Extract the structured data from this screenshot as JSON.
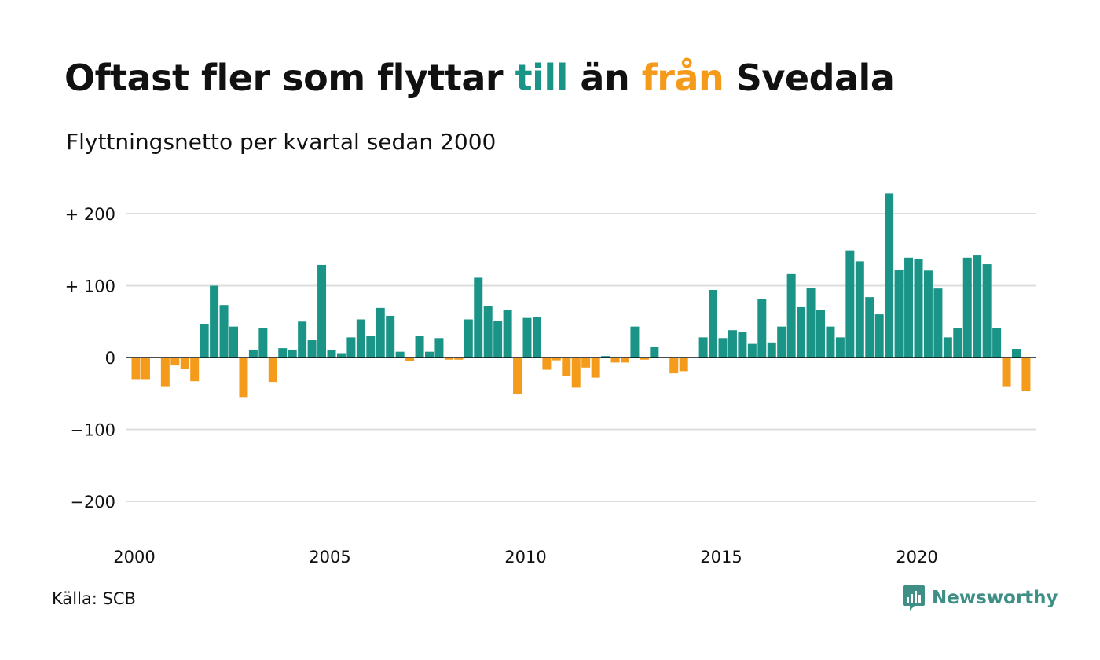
{
  "header": {
    "title_parts": [
      "Oftast fler som flyttar ",
      "till",
      " än ",
      "från",
      " Svedala"
    ],
    "subtitle": "Flyttningsnetto per kvartal sedan 2000"
  },
  "footer": {
    "source": "Källa: SCB",
    "brand": "Newsworthy"
  },
  "colors": {
    "positive": "#1a9486",
    "negative": "#f59b1c",
    "grid": "#dddddd",
    "text": "#111111",
    "brand": "#3f8f86"
  },
  "icons": {
    "brand_logo": "newsworthy-logo-icon"
  },
  "chart_data": {
    "type": "bar",
    "title": "",
    "xlabel": "",
    "ylabel": "",
    "ylim": [
      -250,
      250
    ],
    "y_ticks": [
      {
        "value": 200,
        "label": "+ 200"
      },
      {
        "value": 100,
        "label": "+ 100"
      },
      {
        "value": 0,
        "label": "0"
      },
      {
        "value": -100,
        "label": "−100"
      },
      {
        "value": -200,
        "label": "−200"
      }
    ],
    "x_ticks": [
      "2000",
      "2005",
      "2010",
      "2015",
      "2020"
    ],
    "grid": true,
    "legend": "none",
    "start": "2000-Q1",
    "values": [
      -30,
      -30,
      0,
      -40,
      -11,
      -16,
      -33,
      47,
      100,
      73,
      43,
      -55,
      11,
      41,
      -34,
      13,
      11,
      50,
      24,
      129,
      10,
      6,
      28,
      53,
      30,
      69,
      58,
      8,
      -5,
      30,
      8,
      27,
      -3,
      -3,
      53,
      111,
      72,
      51,
      66,
      -51,
      55,
      56,
      -17,
      -4,
      -26,
      -42,
      -14,
      -28,
      2,
      -7,
      -7,
      43,
      -3,
      15,
      0,
      -22,
      -19,
      0,
      28,
      94,
      27,
      38,
      35,
      19,
      81,
      21,
      43,
      116,
      70,
      97,
      66,
      43,
      28,
      149,
      134,
      84,
      60,
      228,
      122,
      139,
      137,
      121,
      96,
      28,
      41,
      139,
      142,
      130,
      41,
      -40,
      12,
      -47
    ]
  }
}
